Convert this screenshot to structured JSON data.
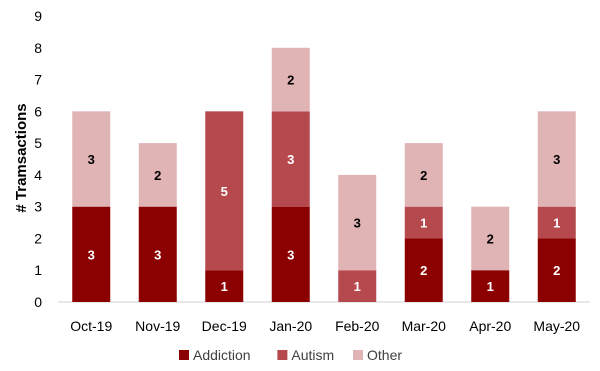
{
  "chart_data": {
    "type": "bar",
    "stacked": true,
    "ylabel": "# Tramsactions",
    "xlabel": "",
    "ylim": [
      0,
      9
    ],
    "yticks": [
      "0",
      "1",
      "2",
      "3",
      "4",
      "5",
      "6",
      "7",
      "8",
      "9"
    ],
    "grid": false,
    "legend_position": "bottom",
    "categories": [
      "Oct-19",
      "Nov-19",
      "Dec-19",
      "Jan-20",
      "Feb-20",
      "Mar-20",
      "Apr-20",
      "May-20"
    ],
    "series": [
      {
        "name": "Addiction",
        "color": "#8b0000",
        "label_color": "#ffffff",
        "values": [
          3,
          3,
          1,
          3,
          0,
          2,
          1,
          2
        ]
      },
      {
        "name": "Autism",
        "color": "#b5494e",
        "label_color": "#ffffff",
        "values": [
          0,
          0,
          5,
          3,
          1,
          1,
          0,
          1
        ]
      },
      {
        "name": "Other",
        "color": "#e0b3b5",
        "label_color": "#000000",
        "values": [
          3,
          2,
          0,
          2,
          3,
          2,
          2,
          3
        ]
      }
    ]
  }
}
